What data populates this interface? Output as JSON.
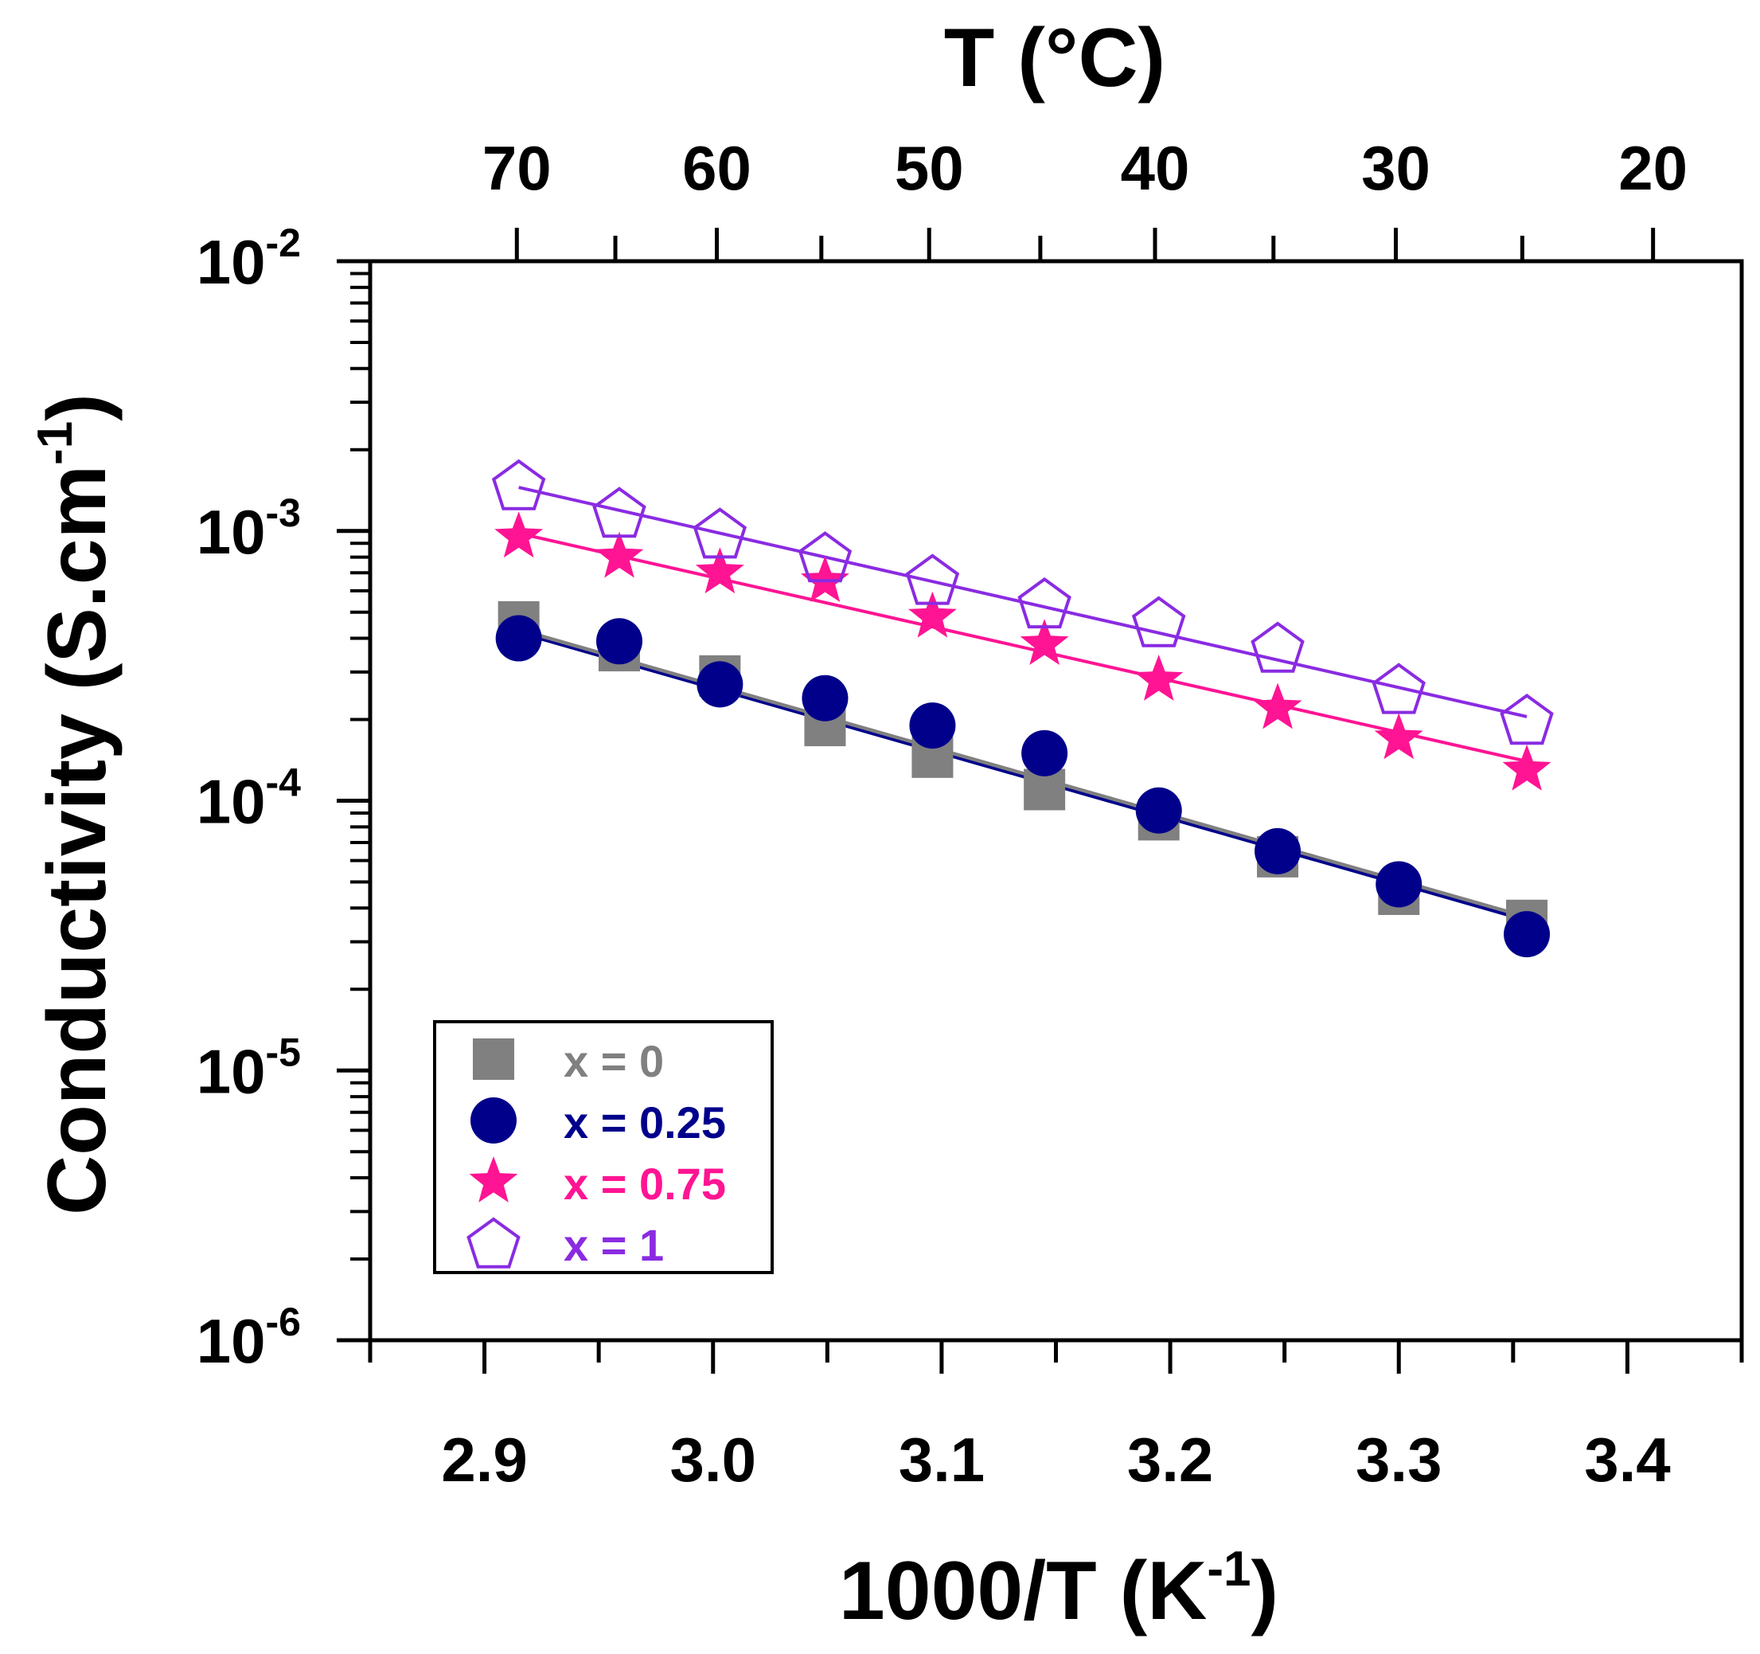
{
  "chart_data": {
    "type": "scatter",
    "title": "",
    "xlabel": "1000/T (K",
    "xlabel_sup": "-1",
    "xlabel_close": ")",
    "ylabel": "Conductivity  (S.cm",
    "ylabel_sup": "-1",
    "ylabel_close": ")",
    "top_xlabel": "T (°C)",
    "xlim": [
      2.85,
      3.45
    ],
    "ylim": [
      1e-06,
      0.01
    ],
    "yscale": "log",
    "grid": false,
    "legend_position": "bottom-left",
    "x_ticks": [
      {
        "value": 2.9,
        "label": "2.9"
      },
      {
        "value": 3.0,
        "label": "3.0"
      },
      {
        "value": 3.1,
        "label": "3.1"
      },
      {
        "value": 3.2,
        "label": "3.2"
      },
      {
        "value": 3.3,
        "label": "3.3"
      },
      {
        "value": 3.4,
        "label": "3.4"
      }
    ],
    "y_ticks": [
      {
        "value": 0.01,
        "base": "10",
        "exp": "-2"
      },
      {
        "value": 0.001,
        "base": "10",
        "exp": "-3"
      },
      {
        "value": 0.0001,
        "base": "10",
        "exp": "-4"
      },
      {
        "value": 1e-05,
        "base": "10",
        "exp": "-5"
      },
      {
        "value": 1e-06,
        "base": "10",
        "exp": "-6"
      }
    ],
    "top_ticks": [
      {
        "celsius": 70,
        "label": "70"
      },
      {
        "celsius": 65,
        "label": ""
      },
      {
        "celsius": 60,
        "label": "60"
      },
      {
        "celsius": 55,
        "label": ""
      },
      {
        "celsius": 50,
        "label": "50"
      },
      {
        "celsius": 45,
        "label": ""
      },
      {
        "celsius": 40,
        "label": "40"
      },
      {
        "celsius": 35,
        "label": ""
      },
      {
        "celsius": 30,
        "label": "30"
      },
      {
        "celsius": 25,
        "label": ""
      },
      {
        "celsius": 20,
        "label": "20"
      }
    ],
    "x": [
      2.915,
      2.959,
      3.003,
      3.049,
      3.096,
      3.145,
      3.195,
      3.247,
      3.3,
      3.356
    ],
    "series": [
      {
        "name": "x = 0",
        "marker": "square",
        "color": "#808080",
        "values": [
          0.00046,
          0.00036,
          0.00029,
          0.00019,
          0.000145,
          0.00011,
          8.5e-05,
          6.2e-05,
          4.5e-05,
          3.6e-05
        ],
        "fit": [
          0.00043,
          3.7e-05
        ]
      },
      {
        "name": "x = 0.25",
        "marker": "circle",
        "color": "#00008b",
        "values": [
          0.0004,
          0.00039,
          0.00027,
          0.00024,
          0.00019,
          0.00015,
          9.2e-05,
          6.5e-05,
          4.9e-05,
          3.2e-05
        ],
        "fit": [
          0.00042,
          3.6e-05
        ]
      },
      {
        "name": "x = 0.75",
        "marker": "star",
        "color": "#ff1493",
        "values": [
          0.00095,
          0.0008,
          0.0007,
          0.00065,
          0.00048,
          0.00038,
          0.00028,
          0.00022,
          0.00017,
          0.00013
        ],
        "fit": [
          0.00098,
          0.00014
        ]
      },
      {
        "name": "x = 1",
        "marker": "pentagon",
        "color": "#8a2be2",
        "values": [
          0.00148,
          0.00117,
          0.00098,
          0.0008,
          0.00066,
          0.00054,
          0.00046,
          0.00037,
          0.00026,
          0.0002
        ],
        "fit": [
          0.00145,
          0.000205
        ]
      }
    ]
  }
}
